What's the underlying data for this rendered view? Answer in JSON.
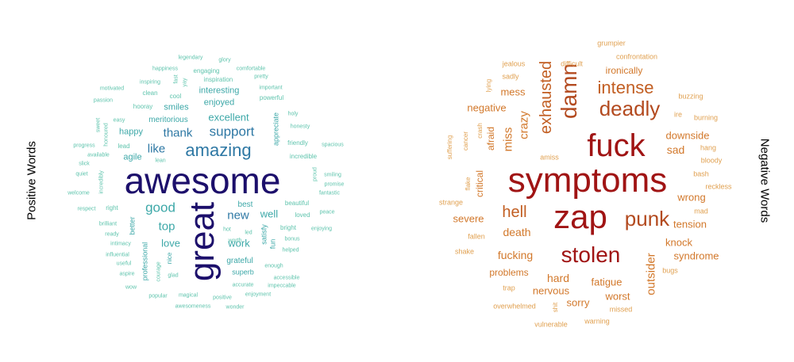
{
  "labels": {
    "left": "Positive Words",
    "right": "Negative Words"
  },
  "clouds": [
    {
      "name": "positive",
      "words": [
        {
          "t": "awesome",
          "s": 46,
          "c": "#1c0f6b"
        },
        {
          "t": "great",
          "s": 44,
          "c": "#1c0f6b",
          "v": true
        },
        {
          "t": "amazing",
          "s": 22,
          "c": "#2e78a4"
        },
        {
          "t": "support",
          "s": 17,
          "c": "#2e78a4"
        },
        {
          "t": "excellent",
          "s": 13,
          "c": "#3da8a8"
        },
        {
          "t": "like",
          "s": 15,
          "c": "#2e78a4"
        },
        {
          "t": "thank",
          "s": 15,
          "c": "#2e78a4"
        },
        {
          "t": "good",
          "s": 17,
          "c": "#3da8a8"
        },
        {
          "t": "top",
          "s": 15,
          "c": "#3da8a8"
        },
        {
          "t": "new",
          "s": 15,
          "c": "#2e78a4"
        },
        {
          "t": "well",
          "s": 13,
          "c": "#3da8a8"
        },
        {
          "t": "love",
          "s": 13,
          "c": "#3da8a8"
        },
        {
          "t": "work",
          "s": 13,
          "c": "#3da8a8"
        },
        {
          "t": "enjoyed",
          "s": 11,
          "c": "#3da8a8"
        },
        {
          "t": "interesting",
          "s": 11,
          "c": "#3da8a8"
        },
        {
          "t": "smiles",
          "s": 11,
          "c": "#3da8a8"
        },
        {
          "t": "meritorious",
          "s": 10,
          "c": "#3da8a8"
        },
        {
          "t": "happy",
          "s": 11,
          "c": "#3da8a8"
        },
        {
          "t": "agile",
          "s": 11,
          "c": "#3da8a8"
        },
        {
          "t": "best",
          "s": 10,
          "c": "#3da8a8"
        },
        {
          "t": "grateful",
          "s": 10,
          "c": "#3da8a8"
        },
        {
          "t": "superb",
          "s": 9,
          "c": "#3da8a8"
        },
        {
          "t": "appreciate",
          "s": 9,
          "c": "#3da8a8",
          "v": true
        },
        {
          "t": "satisfy",
          "s": 9,
          "c": "#3da8a8",
          "v": true
        },
        {
          "t": "fun",
          "s": 9,
          "c": "#3da8a8",
          "v": true
        },
        {
          "t": "better",
          "s": 9,
          "c": "#3da8a8",
          "v": true
        },
        {
          "t": "professional",
          "s": 9,
          "c": "#3da8a8",
          "v": true
        },
        {
          "t": "nice",
          "s": 8,
          "c": "#3da8a8",
          "v": true
        },
        {
          "t": "courage",
          "s": 7,
          "c": "#5fc4ad",
          "v": true
        },
        {
          "t": "glad",
          "s": 7,
          "c": "#5fc4ad"
        },
        {
          "t": "accurate",
          "s": 7,
          "c": "#5fc4ad"
        },
        {
          "t": "enjoyment",
          "s": 7,
          "c": "#5fc4ad"
        },
        {
          "t": "positive",
          "s": 7,
          "c": "#5fc4ad"
        },
        {
          "t": "magical",
          "s": 7,
          "c": "#5fc4ad"
        },
        {
          "t": "popular",
          "s": 7,
          "c": "#5fc4ad"
        },
        {
          "t": "awesomeness",
          "s": 7,
          "c": "#5fc4ad"
        },
        {
          "t": "wonder",
          "s": 7,
          "c": "#5fc4ad"
        },
        {
          "t": "accessible",
          "s": 7,
          "c": "#5fc4ad"
        },
        {
          "t": "impeccable",
          "s": 7,
          "c": "#5fc4ad"
        },
        {
          "t": "enough",
          "s": 7,
          "c": "#5fc4ad"
        },
        {
          "t": "helped",
          "s": 7,
          "c": "#5fc4ad"
        },
        {
          "t": "bonus",
          "s": 7,
          "c": "#5fc4ad"
        },
        {
          "t": "bright",
          "s": 8,
          "c": "#5fc4ad"
        },
        {
          "t": "loved",
          "s": 8,
          "c": "#5fc4ad"
        },
        {
          "t": "beautiful",
          "s": 8,
          "c": "#5fc4ad"
        },
        {
          "t": "enjoying",
          "s": 7,
          "c": "#5fc4ad"
        },
        {
          "t": "peace",
          "s": 7,
          "c": "#5fc4ad"
        },
        {
          "t": "fantastic",
          "s": 7,
          "c": "#5fc4ad"
        },
        {
          "t": "promise",
          "s": 7,
          "c": "#5fc4ad"
        },
        {
          "t": "smiling",
          "s": 7,
          "c": "#5fc4ad"
        },
        {
          "t": "proud",
          "s": 7,
          "c": "#5fc4ad",
          "v": true
        },
        {
          "t": "incredible",
          "s": 8,
          "c": "#5fc4ad"
        },
        {
          "t": "friendly",
          "s": 8,
          "c": "#5fc4ad"
        },
        {
          "t": "spacious",
          "s": 7,
          "c": "#5fc4ad"
        },
        {
          "t": "honesty",
          "s": 7,
          "c": "#5fc4ad"
        },
        {
          "t": "holy",
          "s": 7,
          "c": "#5fc4ad"
        },
        {
          "t": "powerful",
          "s": 8,
          "c": "#5fc4ad"
        },
        {
          "t": "important",
          "s": 7,
          "c": "#5fc4ad"
        },
        {
          "t": "pretty",
          "s": 7,
          "c": "#5fc4ad"
        },
        {
          "t": "comfortable",
          "s": 7,
          "c": "#5fc4ad"
        },
        {
          "t": "glory",
          "s": 7,
          "c": "#5fc4ad"
        },
        {
          "t": "legendary",
          "s": 7,
          "c": "#5fc4ad"
        },
        {
          "t": "engaging",
          "s": 8,
          "c": "#5fc4ad"
        },
        {
          "t": "inspiration",
          "s": 8,
          "c": "#5fc4ad"
        },
        {
          "t": "happiness",
          "s": 7,
          "c": "#5fc4ad"
        },
        {
          "t": "fast",
          "s": 7,
          "c": "#5fc4ad",
          "v": true
        },
        {
          "t": "yay",
          "s": 7,
          "c": "#5fc4ad",
          "v": true
        },
        {
          "t": "inspiring",
          "s": 7,
          "c": "#5fc4ad"
        },
        {
          "t": "motivated",
          "s": 7,
          "c": "#5fc4ad"
        },
        {
          "t": "clean",
          "s": 8,
          "c": "#5fc4ad"
        },
        {
          "t": "cool",
          "s": 8,
          "c": "#5fc4ad"
        },
        {
          "t": "passion",
          "s": 7,
          "c": "#5fc4ad"
        },
        {
          "t": "hooray",
          "s": 8,
          "c": "#5fc4ad"
        },
        {
          "t": "easy",
          "s": 7,
          "c": "#5fc4ad"
        },
        {
          "t": "sweet",
          "s": 7,
          "c": "#5fc4ad",
          "v": true
        },
        {
          "t": "honoured",
          "s": 7,
          "c": "#5fc4ad",
          "v": true
        },
        {
          "t": "lead",
          "s": 8,
          "c": "#5fc4ad"
        },
        {
          "t": "progress",
          "s": 7,
          "c": "#5fc4ad"
        },
        {
          "t": "available",
          "s": 7,
          "c": "#5fc4ad"
        },
        {
          "t": "slick",
          "s": 7,
          "c": "#5fc4ad"
        },
        {
          "t": "quiet",
          "s": 7,
          "c": "#5fc4ad"
        },
        {
          "t": "lean",
          "s": 7,
          "c": "#5fc4ad"
        },
        {
          "t": "incredibly",
          "s": 7,
          "c": "#5fc4ad",
          "v": true
        },
        {
          "t": "welcome",
          "s": 7,
          "c": "#5fc4ad"
        },
        {
          "t": "respect",
          "s": 7,
          "c": "#5fc4ad"
        },
        {
          "t": "right",
          "s": 8,
          "c": "#5fc4ad"
        },
        {
          "t": "brilliant",
          "s": 7,
          "c": "#5fc4ad"
        },
        {
          "t": "ready",
          "s": 7,
          "c": "#5fc4ad"
        },
        {
          "t": "intimacy",
          "s": 7,
          "c": "#5fc4ad"
        },
        {
          "t": "influential",
          "s": 7,
          "c": "#5fc4ad"
        },
        {
          "t": "useful",
          "s": 7,
          "c": "#5fc4ad"
        },
        {
          "t": "aspire",
          "s": 7,
          "c": "#5fc4ad"
        },
        {
          "t": "wow",
          "s": 7,
          "c": "#5fc4ad"
        },
        {
          "t": "hot",
          "s": 7,
          "c": "#5fc4ad"
        },
        {
          "t": "led",
          "s": 7,
          "c": "#5fc4ad"
        },
        {
          "t": "worth",
          "s": 7,
          "c": "#5fc4ad"
        }
      ]
    },
    {
      "name": "negative",
      "words": [
        {
          "t": "symptoms",
          "s": 44,
          "c": "#a01414"
        },
        {
          "t": "zap",
          "s": 42,
          "c": "#a01414"
        },
        {
          "t": "fuck",
          "s": 40,
          "c": "#a01414"
        },
        {
          "t": "damn",
          "s": 28,
          "c": "#b34a1f",
          "v": true
        },
        {
          "t": "deadly",
          "s": 26,
          "c": "#b34a1f"
        },
        {
          "t": "stolen",
          "s": 28,
          "c": "#a01414"
        },
        {
          "t": "punk",
          "s": 26,
          "c": "#b34a1f"
        },
        {
          "t": "intense",
          "s": 22,
          "c": "#c25e22"
        },
        {
          "t": "exhausted",
          "s": 20,
          "c": "#c25e22",
          "v": true
        },
        {
          "t": "hell",
          "s": 20,
          "c": "#c25e22"
        },
        {
          "t": "crazy",
          "s": 15,
          "c": "#d2782b",
          "v": true
        },
        {
          "t": "miss",
          "s": 15,
          "c": "#d2782b",
          "v": true
        },
        {
          "t": "mess",
          "s": 13,
          "c": "#d2782b"
        },
        {
          "t": "negative",
          "s": 13,
          "c": "#d2782b"
        },
        {
          "t": "ironically",
          "s": 12,
          "c": "#d2782b"
        },
        {
          "t": "downside",
          "s": 13,
          "c": "#d2782b"
        },
        {
          "t": "sad",
          "s": 14,
          "c": "#d2782b"
        },
        {
          "t": "severe",
          "s": 13,
          "c": "#d2782b"
        },
        {
          "t": "death",
          "s": 14,
          "c": "#d2782b"
        },
        {
          "t": "fucking",
          "s": 14,
          "c": "#d2782b"
        },
        {
          "t": "hard",
          "s": 14,
          "c": "#d2782b"
        },
        {
          "t": "knock",
          "s": 13,
          "c": "#d2782b"
        },
        {
          "t": "syndrome",
          "s": 13,
          "c": "#d2782b"
        },
        {
          "t": "tension",
          "s": 13,
          "c": "#d2782b"
        },
        {
          "t": "wrong",
          "s": 13,
          "c": "#d2782b"
        },
        {
          "t": "outsider",
          "s": 15,
          "c": "#d2782b",
          "v": true
        },
        {
          "t": "fatigue",
          "s": 13,
          "c": "#d2782b"
        },
        {
          "t": "worst",
          "s": 13,
          "c": "#d2782b"
        },
        {
          "t": "nervous",
          "s": 13,
          "c": "#d2782b"
        },
        {
          "t": "sorry",
          "s": 13,
          "c": "#d2782b"
        },
        {
          "t": "problems",
          "s": 12,
          "c": "#d2782b"
        },
        {
          "t": "critical",
          "s": 12,
          "c": "#d2782b",
          "v": true
        },
        {
          "t": "afraid",
          "s": 12,
          "c": "#d2782b",
          "v": true
        },
        {
          "t": "grumpier",
          "s": 9,
          "c": "#e0a050"
        },
        {
          "t": "confrontation",
          "s": 9,
          "c": "#e0a050"
        },
        {
          "t": "difficult",
          "s": 9,
          "c": "#e0a050"
        },
        {
          "t": "jealous",
          "s": 9,
          "c": "#e0a050"
        },
        {
          "t": "sadly",
          "s": 9,
          "c": "#e0a050"
        },
        {
          "t": "lying",
          "s": 8,
          "c": "#e0a050",
          "v": true
        },
        {
          "t": "buzzing",
          "s": 9,
          "c": "#e0a050"
        },
        {
          "t": "burning",
          "s": 9,
          "c": "#e0a050"
        },
        {
          "t": "ire",
          "s": 9,
          "c": "#e0a050"
        },
        {
          "t": "hang",
          "s": 9,
          "c": "#e0a050"
        },
        {
          "t": "bloody",
          "s": 9,
          "c": "#e0a050"
        },
        {
          "t": "bash",
          "s": 9,
          "c": "#e0a050"
        },
        {
          "t": "reckless",
          "s": 9,
          "c": "#e0a050"
        },
        {
          "t": "mad",
          "s": 9,
          "c": "#e0a050"
        },
        {
          "t": "amiss",
          "s": 9,
          "c": "#e0a050"
        },
        {
          "t": "bugs",
          "s": 9,
          "c": "#e0a050"
        },
        {
          "t": "missed",
          "s": 9,
          "c": "#e0a050"
        },
        {
          "t": "warning",
          "s": 9,
          "c": "#e0a050"
        },
        {
          "t": "vulnerable",
          "s": 9,
          "c": "#e0a050"
        },
        {
          "t": "overwhelmed",
          "s": 9,
          "c": "#e0a050"
        },
        {
          "t": "shit",
          "s": 8,
          "c": "#e0a050",
          "v": true
        },
        {
          "t": "trap",
          "s": 9,
          "c": "#e0a050"
        },
        {
          "t": "shake",
          "s": 9,
          "c": "#e0a050"
        },
        {
          "t": "fallen",
          "s": 9,
          "c": "#e0a050"
        },
        {
          "t": "strange",
          "s": 9,
          "c": "#e0a050"
        },
        {
          "t": "flake",
          "s": 8,
          "c": "#e0a050",
          "v": true
        },
        {
          "t": "suffering",
          "s": 8,
          "c": "#e0a050",
          "v": true
        },
        {
          "t": "cancer",
          "s": 8,
          "c": "#e0a050",
          "v": true
        },
        {
          "t": "crash",
          "s": 8,
          "c": "#e0a050",
          "v": true
        }
      ]
    }
  ]
}
